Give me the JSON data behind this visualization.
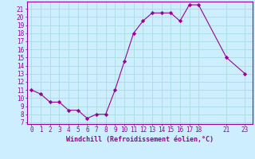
{
  "x": [
    0,
    1,
    2,
    3,
    4,
    5,
    6,
    7,
    8,
    9,
    10,
    11,
    12,
    13,
    14,
    15,
    16,
    17,
    18,
    21,
    23
  ],
  "y": [
    11,
    10.5,
    9.5,
    9.5,
    8.5,
    8.5,
    7.5,
    8,
    8,
    11,
    14.5,
    18,
    19.5,
    20.5,
    20.5,
    20.5,
    19.5,
    21.5,
    21.5,
    15,
    13
  ],
  "xticks": [
    0,
    1,
    2,
    3,
    4,
    5,
    6,
    7,
    8,
    9,
    10,
    11,
    12,
    13,
    14,
    15,
    16,
    17,
    18,
    21,
    23
  ],
  "yticks": [
    7,
    8,
    9,
    10,
    11,
    12,
    13,
    14,
    15,
    16,
    17,
    18,
    19,
    20,
    21
  ],
  "ylim": [
    6.8,
    21.9
  ],
  "xlim": [
    -0.5,
    23.8
  ],
  "xlabel": "Windchill (Refroidissement éolien,°C)",
  "line_color": "#990099",
  "marker": "D",
  "marker_size": 2.2,
  "bg_color": "#cceeff",
  "grid_color": "#aadddd",
  "tick_fontsize": 5.5,
  "xlabel_fontsize": 6.0
}
